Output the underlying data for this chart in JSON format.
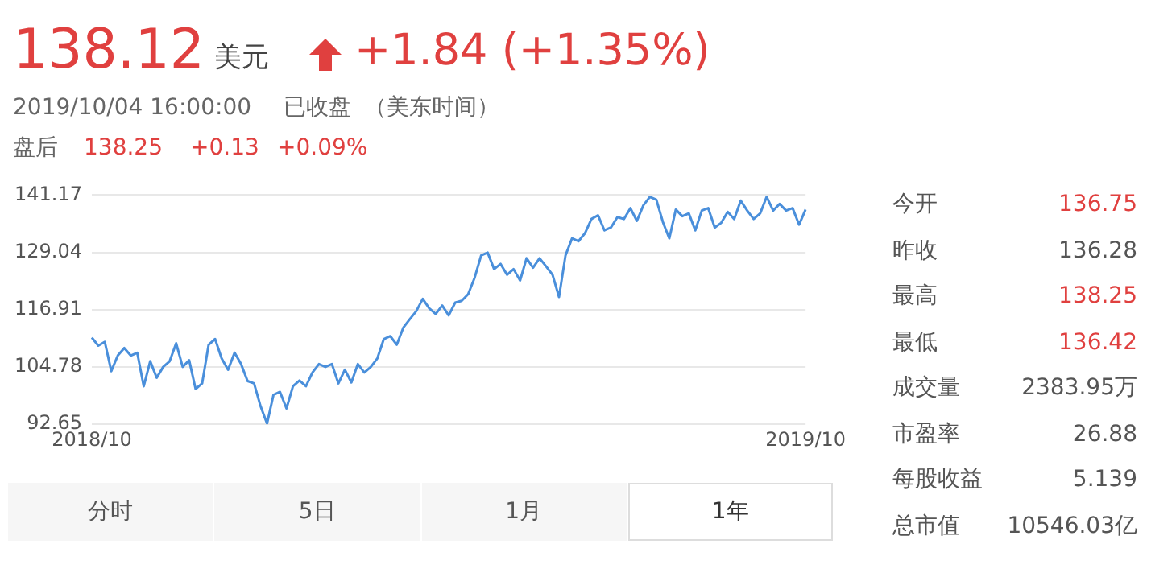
{
  "chart_data": {
    "type": "line",
    "categories": [
      "2018/10",
      null,
      null,
      null,
      null,
      null,
      null,
      null,
      null,
      null,
      null,
      null,
      null,
      null,
      null,
      null,
      null,
      null,
      null,
      null,
      null,
      null,
      null,
      null,
      null,
      null,
      null,
      null,
      null,
      null,
      null,
      null,
      null,
      null,
      null,
      null,
      null,
      null,
      null,
      null,
      null,
      null,
      null,
      null,
      null,
      null,
      null,
      null,
      null,
      null,
      null,
      null,
      null,
      null,
      null,
      null,
      null,
      null,
      null,
      null,
      null,
      null,
      null,
      null,
      null,
      null,
      null,
      null,
      null,
      null,
      null,
      null,
      null,
      null,
      null,
      null,
      null,
      null,
      null,
      null,
      null,
      null,
      null,
      null,
      null,
      null,
      null,
      null,
      null,
      null,
      null,
      null,
      null,
      null,
      null,
      null,
      null,
      null,
      null,
      null,
      null,
      null,
      null,
      null,
      null,
      null,
      null,
      null,
      null,
      null,
      "2019/10"
    ],
    "series": [
      {
        "color": "#4a8fdb",
        "values": [
          111.0,
          109.3,
          110.1,
          103.9,
          107.2,
          108.8,
          107.2,
          107.8,
          100.7,
          106.0,
          102.5,
          104.8,
          106.0,
          109.8,
          104.8,
          106.2,
          100.1,
          101.3,
          109.5,
          110.7,
          106.6,
          104.2,
          107.8,
          105.4,
          101.8,
          101.3,
          96.5,
          92.8,
          98.9,
          99.5,
          96.0,
          100.7,
          101.9,
          100.7,
          103.6,
          105.4,
          104.8,
          105.4,
          101.3,
          104.2,
          101.5,
          105.4,
          103.6,
          104.8,
          106.6,
          110.7,
          111.3,
          109.5,
          113.1,
          114.9,
          116.6,
          119.2,
          117.2,
          116.0,
          117.8,
          115.7,
          118.4,
          118.8,
          120.2,
          123.7,
          128.4,
          129.0,
          125.5,
          126.6,
          124.3,
          125.5,
          123.1,
          127.8,
          125.8,
          127.8,
          126.1,
          124.3,
          119.6,
          128.4,
          132.0,
          131.4,
          133.1,
          136.1,
          136.9,
          133.7,
          134.3,
          136.5,
          136.1,
          138.4,
          135.7,
          139.0,
          140.8,
          140.2,
          135.5,
          132.0,
          138.1,
          136.7,
          137.3,
          133.7,
          137.9,
          138.4,
          134.3,
          135.3,
          137.6,
          136.1,
          140.0,
          137.9,
          136.1,
          137.3,
          140.8,
          137.9,
          139.3,
          137.9,
          138.4,
          134.9,
          138.1
        ]
      }
    ],
    "ylim": [
      92.65,
      141.17
    ],
    "yticks": [
      92.65,
      104.78,
      116.91,
      129.04,
      141.17
    ],
    "grid": "y",
    "marker": "none",
    "line_style": "solid",
    "legend": false,
    "annotations": [
      "138.12",
      "美元",
      "+1.84 (+1.35%)",
      "2019/10/04 16:00:00",
      "已收盘",
      "（美东时间）",
      "盘后",
      "138.25",
      "+0.13",
      "+0.09%",
      "今开",
      "136.75",
      "昨收",
      "136.28",
      "最高",
      "138.25",
      "最低",
      "136.42",
      "成交量",
      "2383.95万",
      "市盈率",
      "26.88",
      "每股收益",
      "5.139",
      "总市值",
      "10546.03亿",
      "分时",
      "5日",
      "1月",
      "1年"
    ]
  }
}
